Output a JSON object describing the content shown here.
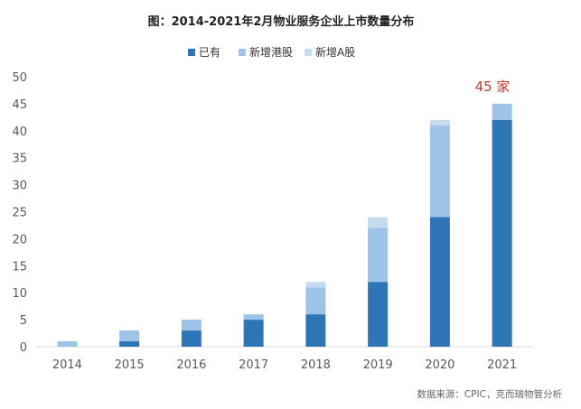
{
  "chart_data": {
    "type": "bar",
    "stacked": true,
    "title": "图：2014-2021年2月物业服务企业上市数量分布",
    "categories": [
      "2014",
      "2015",
      "2016",
      "2017",
      "2018",
      "2019",
      "2020",
      "2021"
    ],
    "series": [
      {
        "name": "已有",
        "color": "#2e75b6",
        "values": [
          0,
          1,
          3,
          5,
          6,
          12,
          24,
          42
        ]
      },
      {
        "name": "新增港股",
        "color": "#9dc3e6",
        "values": [
          1,
          2,
          2,
          1,
          5,
          10,
          17,
          3
        ]
      },
      {
        "name": "新增A股",
        "color": "#c5dbf0",
        "values": [
          0,
          0,
          0,
          0,
          1,
          2,
          1,
          0
        ]
      }
    ],
    "ylim": [
      0,
      50
    ],
    "yticks": [
      "0",
      "5",
      "10",
      "15",
      "20",
      "25",
      "30",
      "35",
      "40",
      "45",
      "50"
    ],
    "grid": false,
    "legend": "top-center",
    "annotation": "45 家",
    "source": "数据来源：CPIC，克而瑞物管分析"
  }
}
